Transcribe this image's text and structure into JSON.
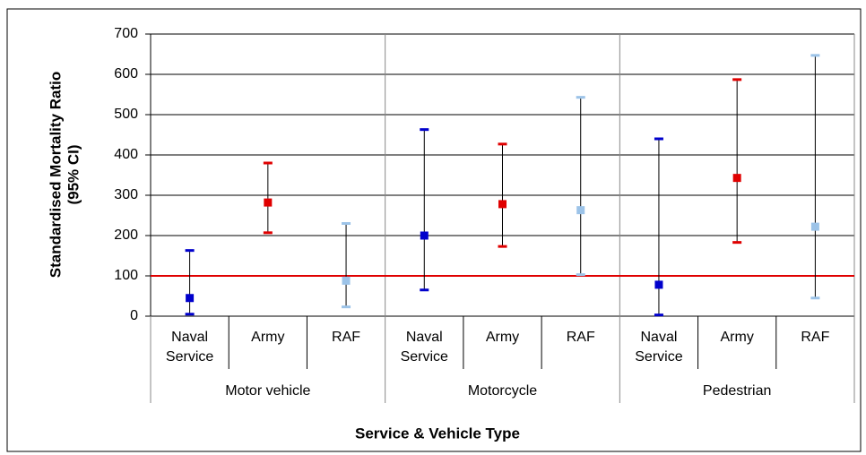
{
  "chart_data": {
    "type": "errorbar",
    "y_label": [
      "Standardised Mortality Ratio",
      "(95% CI)"
    ],
    "x_label": "Service & Vehicle Type",
    "groups": [
      "Motor vehicle",
      "Motorcycle",
      "Pedestrian"
    ],
    "categories": [
      "Naval Service",
      "Army",
      "RAF",
      "Naval Service",
      "Army",
      "RAF",
      "Naval Service",
      "Army",
      "RAF"
    ],
    "values": [
      45,
      282,
      88,
      200,
      278,
      263,
      78,
      343,
      222
    ],
    "lower": [
      5,
      207,
      23,
      65,
      173,
      103,
      3,
      183,
      45
    ],
    "upper": [
      163,
      380,
      230,
      463,
      427,
      543,
      440,
      587,
      647
    ],
    "colors": [
      "#0000cc",
      "#e00000",
      "#9cc3e8",
      "#0000cc",
      "#e00000",
      "#9cc3e8",
      "#0000cc",
      "#e00000",
      "#9cc3e8"
    ],
    "reference_line": 100,
    "reference_color": "#e00000",
    "ylim": [
      0,
      700
    ],
    "yticks": [
      0,
      100,
      200,
      300,
      400,
      500,
      600,
      700
    ],
    "grid": true
  }
}
